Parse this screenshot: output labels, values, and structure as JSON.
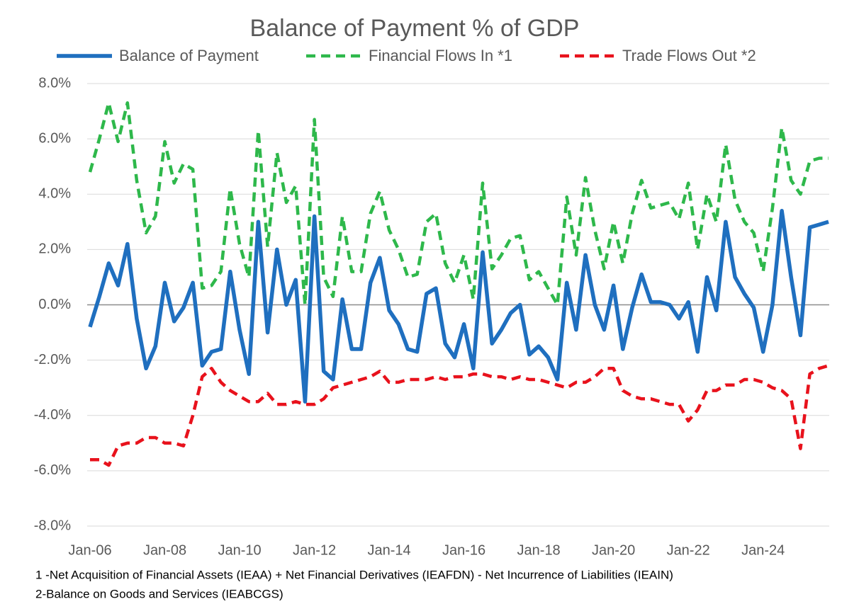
{
  "chart_data": {
    "type": "line",
    "title": "Balance of Payment % of GDP",
    "categories": [
      "Jan-06",
      null,
      null,
      null,
      null,
      null,
      null,
      null,
      "Jan-08",
      null,
      null,
      null,
      null,
      null,
      null,
      null,
      "Jan-10",
      null,
      null,
      null,
      null,
      null,
      null,
      null,
      "Jan-12",
      null,
      null,
      null,
      null,
      null,
      null,
      null,
      "Jan-14",
      null,
      null,
      null,
      null,
      null,
      null,
      null,
      "Jan-16",
      null,
      null,
      null,
      null,
      null,
      null,
      null,
      "Jan-18",
      null,
      null,
      null,
      null,
      null,
      null,
      null,
      "Jan-20",
      null,
      null,
      null,
      null,
      null,
      null,
      null,
      "Jan-22",
      null,
      null,
      null,
      null,
      null,
      null,
      null,
      "Jan-24",
      null,
      null,
      null,
      null,
      null,
      null,
      null
    ],
    "series": [
      {
        "name": "Balance of Payment",
        "color": "#1f6fbf",
        "dash": false,
        "values": [
          -0.8,
          0.3,
          1.5,
          0.7,
          2.2,
          -0.5,
          -2.3,
          -1.5,
          0.8,
          -0.6,
          -0.1,
          0.8,
          -2.2,
          -1.7,
          -1.6,
          1.2,
          -0.9,
          -2.5,
          3.0,
          -1.0,
          2.0,
          0.0,
          0.9,
          -3.5,
          3.2,
          -2.4,
          -2.7,
          0.2,
          -1.6,
          -1.6,
          0.8,
          1.7,
          -0.2,
          -0.7,
          -1.6,
          -1.7,
          0.4,
          0.6,
          -1.4,
          -1.9,
          -0.7,
          -2.3,
          1.9,
          -1.4,
          -0.9,
          -0.3,
          0.0,
          -1.8,
          -1.5,
          -1.9,
          -2.7,
          0.8,
          -0.9,
          1.8,
          0.0,
          -0.9,
          0.7,
          -1.6,
          -0.1,
          1.1,
          0.1,
          0.1,
          0.0,
          -0.5,
          0.1,
          -1.7,
          1.0,
          -0.2,
          3.0,
          1.0,
          0.4,
          -0.1,
          -1.7,
          0.0,
          3.4,
          1.0,
          -1.1,
          2.8,
          2.9,
          3.0
        ]
      },
      {
        "name": "Financial Flows In *1",
        "color": "#2eb84b",
        "dash": true,
        "values": [
          4.8,
          6.0,
          7.3,
          5.9,
          7.3,
          4.5,
          2.6,
          3.2,
          5.9,
          4.4,
          5.1,
          4.9,
          0.6,
          0.7,
          1.2,
          4.2,
          2.2,
          1.0,
          6.3,
          2.1,
          5.5,
          3.7,
          4.3,
          0.0,
          6.7,
          1.0,
          0.3,
          3.2,
          1.2,
          1.2,
          3.3,
          4.1,
          2.7,
          2.0,
          1.0,
          1.1,
          3.0,
          3.3,
          1.5,
          0.8,
          1.8,
          0.2,
          4.4,
          1.3,
          1.8,
          2.4,
          2.5,
          0.9,
          1.2,
          0.6,
          0.0,
          3.9,
          1.8,
          4.6,
          2.7,
          1.3,
          3.0,
          1.5,
          3.3,
          4.5,
          3.5,
          3.6,
          3.7,
          3.1,
          4.4,
          2.0,
          4.0,
          3.0,
          5.8,
          3.8,
          3.0,
          2.6,
          1.2,
          3.5,
          6.4,
          4.5,
          4.0,
          5.2,
          5.3,
          5.3
        ]
      },
      {
        "name": "Trade Flows Out *2",
        "color": "#e8121c",
        "dash": true,
        "values": [
          -5.6,
          -5.6,
          -5.8,
          -5.1,
          -5.0,
          -5.0,
          -4.8,
          -4.8,
          -5.0,
          -5.0,
          -5.1,
          -4.0,
          -2.6,
          -2.3,
          -2.8,
          -3.1,
          -3.3,
          -3.5,
          -3.5,
          -3.2,
          -3.6,
          -3.6,
          -3.5,
          -3.6,
          -3.6,
          -3.4,
          -3.0,
          -2.9,
          -2.8,
          -2.7,
          -2.6,
          -2.4,
          -2.8,
          -2.8,
          -2.7,
          -2.7,
          -2.7,
          -2.6,
          -2.7,
          -2.6,
          -2.6,
          -2.5,
          -2.5,
          -2.6,
          -2.6,
          -2.7,
          -2.6,
          -2.7,
          -2.7,
          -2.8,
          -2.9,
          -3.0,
          -2.8,
          -2.8,
          -2.6,
          -2.3,
          -2.3,
          -3.1,
          -3.3,
          -3.4,
          -3.4,
          -3.5,
          -3.6,
          -3.6,
          -4.2,
          -3.8,
          -3.1,
          -3.1,
          -2.9,
          -2.9,
          -2.7,
          -2.7,
          -2.8,
          -3.0,
          -3.1,
          -3.4,
          -5.2,
          -2.5,
          -2.3,
          -2.2
        ]
      }
    ],
    "ylim": [
      -8,
      8
    ],
    "yticks": [
      {
        "value": -8,
        "label": "-8.0%"
      },
      {
        "value": -6,
        "label": "-6.0%"
      },
      {
        "value": -4,
        "label": "-4.0%"
      },
      {
        "value": -2,
        "label": "-2.0%"
      },
      {
        "value": 0,
        "label": "0.0%"
      },
      {
        "value": 2,
        "label": "2.0%"
      },
      {
        "value": 4,
        "label": "4.0%"
      },
      {
        "value": 6,
        "label": "6.0%"
      },
      {
        "value": 8,
        "label": "8.0%"
      }
    ],
    "grid": true,
    "legend": "top",
    "footnotes": [
      "1 -Net Acquisition of Financial Assets (IEAA) + Net Financial Derivatives (IEAFDN) - Net Incurrence of Liabilities (IEAIN)",
      "2-Balance on Goods and Services (IEABCGS)"
    ]
  }
}
